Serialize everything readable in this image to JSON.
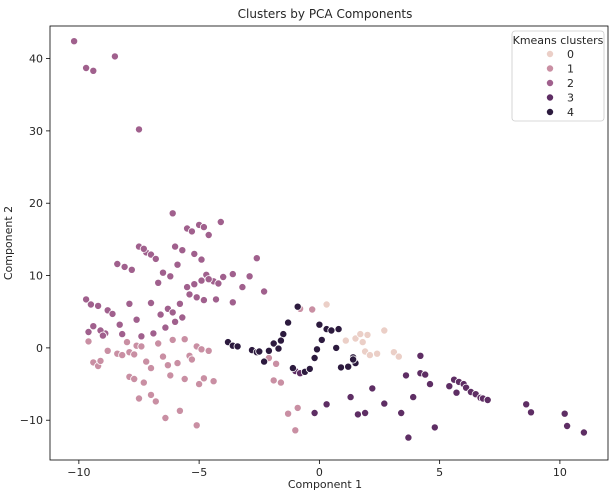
{
  "chart_data": {
    "type": "scatter",
    "title": "Clusters by PCA Components",
    "xlabel": "Component 1",
    "ylabel": "Component 2",
    "xlim": [
      -11.2,
      12.0
    ],
    "ylim": [
      -15.5,
      44.5
    ],
    "xticks": [
      -10,
      -5,
      0,
      5,
      10
    ],
    "yticks": [
      -10,
      0,
      10,
      20,
      30,
      40
    ],
    "grid": false,
    "legend": {
      "title": "Kmeans clusters",
      "placement": "top-right",
      "entries": [
        "0",
        "1",
        "2",
        "3",
        "4"
      ]
    },
    "colors": {
      "0": "#ebcfc7",
      "1": "#c98fa3",
      "2": "#a0608d",
      "3": "#5e2e64",
      "4": "#2c1a3e"
    },
    "series": [
      {
        "name": "0",
        "points": [
          [
            0.3,
            6.0
          ],
          [
            1.1,
            1.0
          ],
          [
            1.5,
            1.3
          ],
          [
            1.8,
            0.8
          ],
          [
            1.9,
            -0.5
          ],
          [
            2.0,
            1.8
          ],
          [
            2.4,
            -0.8
          ],
          [
            2.7,
            2.4
          ],
          [
            3.1,
            -0.6
          ],
          [
            3.3,
            -1.2
          ],
          [
            2.1,
            -1.0
          ],
          [
            1.7,
            1.9
          ]
        ]
      },
      {
        "name": "1",
        "points": [
          [
            -9.6,
            0.9
          ],
          [
            -9.4,
            -2.0
          ],
          [
            -9.2,
            -2.5
          ],
          [
            -9.1,
            -1.8
          ],
          [
            -8.8,
            -0.4
          ],
          [
            -8.4,
            -0.8
          ],
          [
            -8.2,
            -1.0
          ],
          [
            -8.0,
            0.8
          ],
          [
            -7.9,
            -0.6
          ],
          [
            -7.7,
            -0.9
          ],
          [
            -7.6,
            0.3
          ],
          [
            -7.4,
            0.2
          ],
          [
            -7.2,
            -1.9
          ],
          [
            -7.0,
            -2.8
          ],
          [
            -6.7,
            0.6
          ],
          [
            -6.5,
            -1.2
          ],
          [
            -6.3,
            -2.4
          ],
          [
            -6.1,
            1.1
          ],
          [
            -5.9,
            -2.1
          ],
          [
            -5.6,
            1.2
          ],
          [
            -5.4,
            -1.1
          ],
          [
            -5.3,
            -1.6
          ],
          [
            -5.1,
            0.2
          ],
          [
            -4.9,
            -0.2
          ],
          [
            -4.6,
            -0.4
          ],
          [
            -7.9,
            -4.0
          ],
          [
            -7.7,
            -4.3
          ],
          [
            -7.3,
            -4.8
          ],
          [
            -7.0,
            -6.5
          ],
          [
            -6.8,
            -7.4
          ],
          [
            -7.5,
            -7.0
          ],
          [
            -6.2,
            -3.8
          ],
          [
            -5.6,
            -4.3
          ],
          [
            -4.8,
            -4.2
          ],
          [
            -4.4,
            -4.6
          ],
          [
            -5.0,
            -5.0
          ],
          [
            -6.4,
            -9.7
          ],
          [
            -5.8,
            -8.7
          ],
          [
            -5.1,
            -10.7
          ],
          [
            -1.9,
            -4.5
          ],
          [
            -1.6,
            -4.8
          ],
          [
            -1.3,
            -9.1
          ],
          [
            -0.9,
            -8.3
          ],
          [
            -1.0,
            -11.4
          ],
          [
            -0.8,
            5.4
          ],
          [
            -0.3,
            5.3
          ],
          [
            -2.1,
            -1.4
          ],
          [
            -1.8,
            -2.2
          ]
        ]
      },
      {
        "name": "2",
        "points": [
          [
            -10.2,
            42.4
          ],
          [
            -9.7,
            38.7
          ],
          [
            -9.4,
            38.3
          ],
          [
            -8.5,
            40.3
          ],
          [
            -7.5,
            30.2
          ],
          [
            -6.1,
            18.6
          ],
          [
            -4.1,
            17.4
          ],
          [
            -9.7,
            6.7
          ],
          [
            -9.5,
            6.0
          ],
          [
            -9.2,
            5.8
          ],
          [
            -8.8,
            5.2
          ],
          [
            -8.4,
            11.6
          ],
          [
            -8.1,
            11.2
          ],
          [
            -7.8,
            10.8
          ],
          [
            -7.5,
            14.0
          ],
          [
            -7.2,
            13.2
          ],
          [
            -7.0,
            12.9
          ],
          [
            -6.8,
            12.3
          ],
          [
            -6.5,
            10.4
          ],
          [
            -6.2,
            9.9
          ],
          [
            -6.0,
            14.0
          ],
          [
            -5.7,
            13.5
          ],
          [
            -5.5,
            16.5
          ],
          [
            -5.3,
            16.1
          ],
          [
            -5.0,
            17.0
          ],
          [
            -4.8,
            16.7
          ],
          [
            -4.6,
            15.6
          ],
          [
            -5.2,
            13.0
          ],
          [
            -4.9,
            12.2
          ],
          [
            -4.7,
            10.1
          ],
          [
            -4.4,
            9.2
          ],
          [
            -4.2,
            8.9
          ],
          [
            -4.0,
            9.8
          ],
          [
            -3.6,
            10.2
          ],
          [
            -3.2,
            8.4
          ],
          [
            -2.9,
            9.9
          ],
          [
            -2.6,
            12.4
          ],
          [
            -2.3,
            7.8
          ],
          [
            -3.6,
            6.3
          ],
          [
            -4.8,
            6.6
          ],
          [
            -5.1,
            7.0
          ],
          [
            -5.4,
            7.4
          ],
          [
            -5.8,
            6.1
          ],
          [
            -6.3,
            5.4
          ],
          [
            -6.6,
            4.6
          ],
          [
            -7.0,
            6.2
          ],
          [
            -7.6,
            3.9
          ],
          [
            -7.9,
            6.1
          ],
          [
            -8.3,
            3.2
          ],
          [
            -8.6,
            4.7
          ],
          [
            -8.9,
            2.0
          ],
          [
            -9.1,
            2.4
          ],
          [
            -9.4,
            3.0
          ],
          [
            -9.6,
            2.2
          ],
          [
            -9.0,
            1.7
          ],
          [
            -8.2,
            1.9
          ],
          [
            -7.4,
            1.6
          ],
          [
            -6.9,
            2.0
          ],
          [
            -6.4,
            2.8
          ],
          [
            -6.0,
            3.6
          ],
          [
            -5.7,
            4.2
          ],
          [
            -5.5,
            8.4
          ],
          [
            -5.2,
            8.8
          ],
          [
            -4.9,
            9.3
          ],
          [
            -4.6,
            9.5
          ],
          [
            -4.3,
            6.7
          ],
          [
            -6.1,
            4.9
          ],
          [
            -6.7,
            9.0
          ],
          [
            -7.3,
            13.7
          ],
          [
            -5.9,
            11.5
          ]
        ]
      },
      {
        "name": "3",
        "points": [
          [
            -1.0,
            -3.2
          ],
          [
            -0.8,
            -3.5
          ],
          [
            -0.2,
            -9.0
          ],
          [
            0.3,
            -7.8
          ],
          [
            1.3,
            -6.8
          ],
          [
            1.6,
            -9.2
          ],
          [
            1.9,
            -9.0
          ],
          [
            2.7,
            -7.7
          ],
          [
            3.4,
            -9.0
          ],
          [
            3.6,
            -3.8
          ],
          [
            3.9,
            -6.8
          ],
          [
            4.2,
            -3.5
          ],
          [
            4.4,
            -3.7
          ],
          [
            4.6,
            -5.0
          ],
          [
            4.8,
            -11.0
          ],
          [
            5.4,
            -5.3
          ],
          [
            5.6,
            -4.4
          ],
          [
            5.8,
            -4.7
          ],
          [
            6.0,
            -5.0
          ],
          [
            6.1,
            -5.5
          ],
          [
            6.3,
            -6.1
          ],
          [
            6.5,
            -6.4
          ],
          [
            6.7,
            -6.9
          ],
          [
            6.8,
            -7.0
          ],
          [
            7.0,
            -7.2
          ],
          [
            8.6,
            -7.8
          ],
          [
            8.8,
            -8.9
          ],
          [
            10.2,
            -9.1
          ],
          [
            10.3,
            -10.8
          ],
          [
            11.0,
            -11.7
          ],
          [
            3.7,
            -12.4
          ],
          [
            5.7,
            -6.2
          ],
          [
            4.2,
            -1.1
          ],
          [
            2.2,
            -5.6
          ]
        ]
      },
      {
        "name": "4",
        "points": [
          [
            -3.8,
            0.8
          ],
          [
            -3.6,
            0.3
          ],
          [
            -3.4,
            0.2
          ],
          [
            -2.8,
            -0.3
          ],
          [
            -2.6,
            -0.6
          ],
          [
            -2.3,
            -1.9
          ],
          [
            -2.1,
            -0.4
          ],
          [
            -1.9,
            0.6
          ],
          [
            -1.7,
            -0.1
          ],
          [
            -1.5,
            1.9
          ],
          [
            -1.3,
            3.5
          ],
          [
            -1.1,
            -2.8
          ],
          [
            -0.9,
            5.7
          ],
          [
            -0.6,
            -3.3
          ],
          [
            -0.4,
            -2.9
          ],
          [
            -0.2,
            -1.4
          ],
          [
            0.0,
            3.2
          ],
          [
            0.1,
            1.1
          ],
          [
            0.3,
            2.6
          ],
          [
            0.5,
            2.4
          ],
          [
            0.7,
            0.0
          ],
          [
            0.9,
            -2.7
          ],
          [
            1.2,
            -2.6
          ],
          [
            1.4,
            -1.3
          ],
          [
            1.5,
            -2.1
          ],
          [
            -0.1,
            -0.2
          ],
          [
            -1.6,
            1.0
          ],
          [
            0.8,
            2.6
          ],
          [
            1.4,
            -1.6
          ],
          [
            -2.5,
            -0.5
          ]
        ]
      }
    ]
  }
}
